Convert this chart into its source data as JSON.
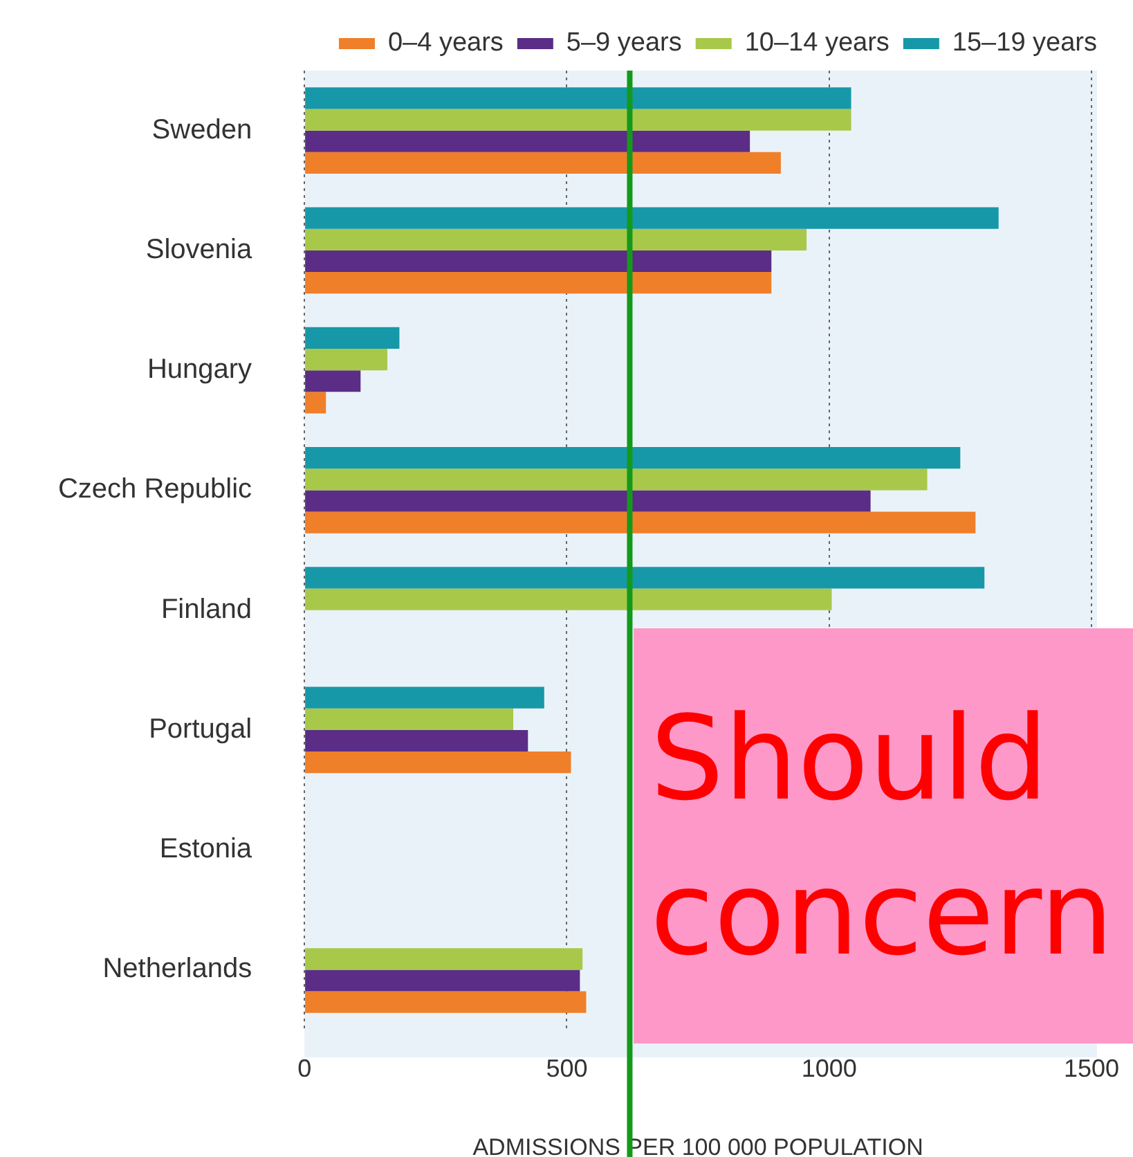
{
  "chart_data": {
    "type": "bar",
    "orientation": "horizontal",
    "xlabel": "ADMISSIONS PER 100 000 POPULATION",
    "categories": [
      "Sweden",
      "Slovenia",
      "Hungary",
      "Czech Republic",
      "Finland",
      "Portugal",
      "Estonia",
      "Netherlands"
    ],
    "series": [
      {
        "name": "0–4 years",
        "color": "#f07f2a",
        "values": [
          908,
          890,
          41,
          1279,
          null,
          508,
          null,
          537
        ]
      },
      {
        "name": "5–9 years",
        "color": "#5b2d86",
        "values": [
          849,
          890,
          107,
          1079,
          null,
          426,
          null,
          525
        ]
      },
      {
        "name": "10–14 years",
        "color": "#a8c84a",
        "values": [
          1042,
          957,
          158,
          1187,
          1005,
          398,
          null,
          530
        ]
      },
      {
        "name": "15–19 years",
        "color": "#1798a8",
        "values": [
          1042,
          1323,
          181,
          1250,
          1296,
          457,
          null,
          null
        ]
      }
    ],
    "xlim": [
      0,
      1500
    ],
    "xticks": [
      0,
      500,
      1000,
      1500
    ],
    "grid": "x",
    "legend": "top right",
    "ref_lines": [
      {
        "axis": "x",
        "value": 620,
        "color": "#139a1a"
      }
    ],
    "annotations": [
      "Should concern"
    ]
  }
}
